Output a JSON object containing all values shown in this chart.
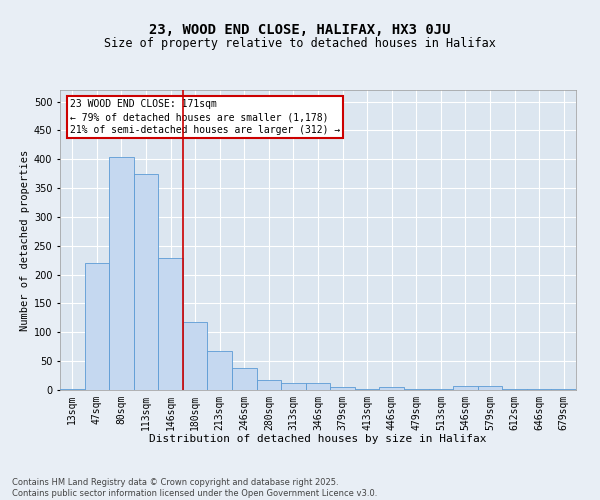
{
  "title": "23, WOOD END CLOSE, HALIFAX, HX3 0JU",
  "subtitle": "Size of property relative to detached houses in Halifax",
  "xlabel": "Distribution of detached houses by size in Halifax",
  "ylabel": "Number of detached properties",
  "categories": [
    "13sqm",
    "47sqm",
    "80sqm",
    "113sqm",
    "146sqm",
    "180sqm",
    "213sqm",
    "246sqm",
    "280sqm",
    "313sqm",
    "346sqm",
    "379sqm",
    "413sqm",
    "446sqm",
    "479sqm",
    "513sqm",
    "546sqm",
    "579sqm",
    "612sqm",
    "646sqm",
    "679sqm"
  ],
  "values": [
    2,
    220,
    403,
    375,
    228,
    118,
    68,
    38,
    17,
    13,
    12,
    5,
    1,
    6,
    1,
    1,
    7,
    7,
    1,
    1,
    1
  ],
  "bar_color": "#c5d8f0",
  "bar_edge_color": "#5b9bd5",
  "vline_x_index": 4.5,
  "vline_color": "#cc0000",
  "annotation_line1": "23 WOOD END CLOSE: 171sqm",
  "annotation_line2": "← 79% of detached houses are smaller (1,178)",
  "annotation_line3": "21% of semi-detached houses are larger (312) →",
  "annotation_box_color": "#cc0000",
  "annotation_text_fontsize": 7,
  "background_color": "#e8eef5",
  "plot_bg_color": "#dce6f0",
  "grid_color": "#ffffff",
  "footer": "Contains HM Land Registry data © Crown copyright and database right 2025.\nContains public sector information licensed under the Open Government Licence v3.0.",
  "ylim": [
    0,
    520
  ],
  "yticks": [
    0,
    50,
    100,
    150,
    200,
    250,
    300,
    350,
    400,
    450,
    500
  ],
  "title_fontsize": 10,
  "subtitle_fontsize": 8.5,
  "xlabel_fontsize": 8,
  "ylabel_fontsize": 7.5,
  "tick_fontsize": 7,
  "footer_fontsize": 6
}
